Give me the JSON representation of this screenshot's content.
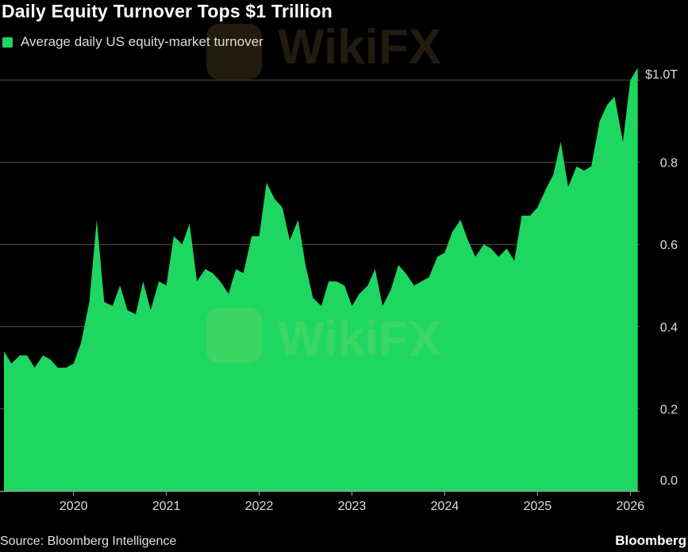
{
  "title": "Daily Equity Turnover Tops $1 Trillion",
  "legend": {
    "label": "Average daily US equity-market turnover",
    "color": "#1ed760"
  },
  "source": "Source: Bloomberg Intelligence",
  "brand": "Bloomberg",
  "watermark": {
    "text": "WikiFX"
  },
  "chart_data": {
    "type": "area",
    "title": "Daily Equity Turnover Tops $1 Trillion",
    "series": [
      {
        "name": "Average daily US equity-market turnover",
        "color": "#1ed760",
        "x": [
          2019.25,
          2019.33,
          2019.42,
          2019.5,
          2019.58,
          2019.67,
          2019.75,
          2019.83,
          2019.92,
          2020.0,
          2020.08,
          2020.17,
          2020.25,
          2020.33,
          2020.42,
          2020.5,
          2020.58,
          2020.67,
          2020.75,
          2020.83,
          2020.92,
          2021.0,
          2021.08,
          2021.17,
          2021.25,
          2021.33,
          2021.42,
          2021.5,
          2021.58,
          2021.67,
          2021.75,
          2021.83,
          2021.92,
          2022.0,
          2022.08,
          2022.17,
          2022.25,
          2022.33,
          2022.42,
          2022.5,
          2022.58,
          2022.67,
          2022.75,
          2022.83,
          2022.92,
          2023.0,
          2023.08,
          2023.17,
          2023.25,
          2023.33,
          2023.42,
          2023.5,
          2023.58,
          2023.67,
          2023.75,
          2023.83,
          2023.92,
          2024.0,
          2024.08,
          2024.17,
          2024.25,
          2024.33,
          2024.42,
          2024.5,
          2024.58,
          2024.67,
          2024.75,
          2024.83,
          2024.92,
          2025.0,
          2025.08,
          2025.17,
          2025.25,
          2025.33,
          2025.42,
          2025.5,
          2025.58,
          2025.67,
          2025.75,
          2025.83,
          2025.92,
          2026.0,
          2026.08
        ],
        "values": [
          0.34,
          0.31,
          0.33,
          0.33,
          0.3,
          0.33,
          0.32,
          0.3,
          0.3,
          0.31,
          0.36,
          0.46,
          0.66,
          0.46,
          0.45,
          0.5,
          0.44,
          0.43,
          0.51,
          0.44,
          0.51,
          0.5,
          0.62,
          0.6,
          0.65,
          0.51,
          0.54,
          0.53,
          0.51,
          0.48,
          0.54,
          0.53,
          0.62,
          0.62,
          0.75,
          0.71,
          0.69,
          0.61,
          0.66,
          0.55,
          0.47,
          0.45,
          0.51,
          0.51,
          0.5,
          0.45,
          0.48,
          0.5,
          0.54,
          0.45,
          0.49,
          0.55,
          0.53,
          0.5,
          0.51,
          0.52,
          0.57,
          0.58,
          0.63,
          0.66,
          0.61,
          0.57,
          0.6,
          0.59,
          0.57,
          0.59,
          0.56,
          0.67,
          0.67,
          0.69,
          0.73,
          0.77,
          0.85,
          0.74,
          0.79,
          0.78,
          0.79,
          0.9,
          0.94,
          0.96,
          0.85,
          1.0,
          1.03
        ]
      }
    ],
    "y_ticks": [
      {
        "value": 0.0,
        "label": "0.0"
      },
      {
        "value": 0.2,
        "label": "0.2"
      },
      {
        "value": 0.4,
        "label": "0.4"
      },
      {
        "value": 0.6,
        "label": "0.6"
      },
      {
        "value": 0.8,
        "label": "0.8"
      },
      {
        "value": 1.0,
        "label": "$1.0T"
      }
    ],
    "x_ticks": [
      {
        "value": 2020,
        "label": "2020"
      },
      {
        "value": 2021,
        "label": "2021"
      },
      {
        "value": 2022,
        "label": "2022"
      },
      {
        "value": 2023,
        "label": "2023"
      },
      {
        "value": 2024,
        "label": "2024"
      },
      {
        "value": 2025,
        "label": "2025"
      },
      {
        "value": 2026,
        "label": "2026"
      }
    ],
    "xlim": [
      2019.25,
      2026.1
    ],
    "ylim": [
      0,
      1.0
    ],
    "grid": true,
    "legend_position": "top-left",
    "colors": {
      "background": "#000000",
      "grid": "#555555",
      "axis": "#aaaaaa"
    }
  }
}
